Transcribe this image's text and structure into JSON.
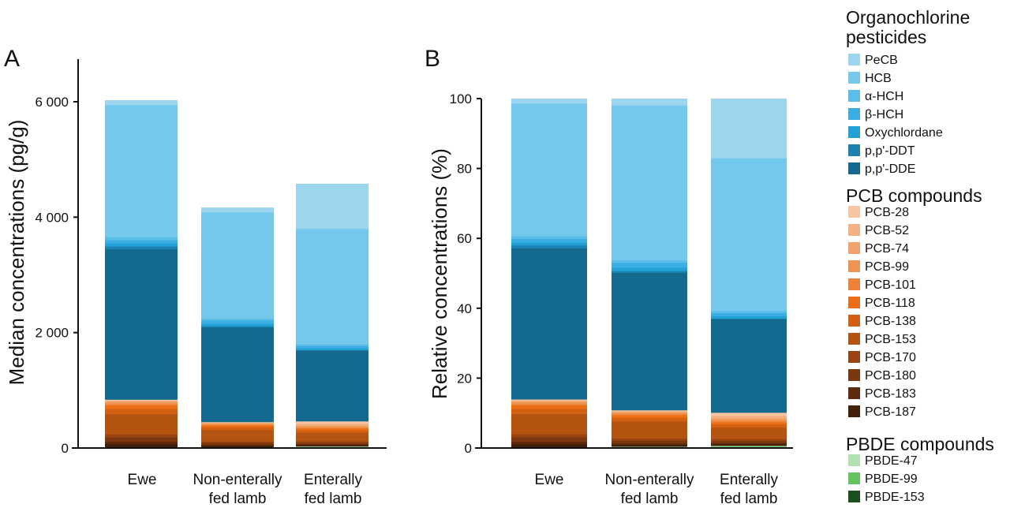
{
  "legend": {
    "groups": [
      {
        "title_line1": "Organochlorine",
        "title_line2": "pesticides"
      },
      {
        "title_line1": "PCB compounds",
        "title_line2": ""
      },
      {
        "title_line1": "PBDE compounds",
        "title_line2": ""
      }
    ]
  },
  "chart_data": [
    {
      "type": "bar",
      "stacked": true,
      "panel_label": "A",
      "ylabel": "Median concentrations (pg/g)",
      "xlabel": "",
      "ylim": [
        0,
        6700
      ],
      "yticks": [
        0,
        2000,
        4000,
        6000
      ],
      "ytick_labels": [
        "0",
        "2 000",
        "4 000",
        "6 000"
      ],
      "categories": [
        [
          "Ewe",
          ""
        ],
        [
          "Non-enterally",
          "fed lamb"
        ],
        [
          "Enterally",
          "fed lamb"
        ]
      ],
      "grid": false,
      "legend_position": "right",
      "series": [
        {
          "name": "PBDE-153",
          "group": 2,
          "color": "#1b4f1e",
          "values": [
            2,
            2,
            5
          ]
        },
        {
          "name": "PBDE-99",
          "group": 2,
          "color": "#62c562",
          "values": [
            5,
            10,
            15
          ]
        },
        {
          "name": "PBDE-47",
          "group": 2,
          "color": "#b0e3b0",
          "values": [
            3,
            5,
            10
          ]
        },
        {
          "name": "PCB-187",
          "group": 1,
          "color": "#42200a",
          "values": [
            60,
            25,
            20
          ]
        },
        {
          "name": "PCB-183",
          "group": 1,
          "color": "#5e290c",
          "values": [
            40,
            15,
            15
          ]
        },
        {
          "name": "PCB-180",
          "group": 1,
          "color": "#7d370f",
          "values": [
            80,
            35,
            30
          ]
        },
        {
          "name": "PCB-170",
          "group": 1,
          "color": "#9a4510",
          "values": [
            50,
            25,
            25
          ]
        },
        {
          "name": "PCB-153",
          "group": 1,
          "color": "#b55310",
          "values": [
            350,
            200,
            150
          ]
        },
        {
          "name": "PCB-138",
          "group": 1,
          "color": "#d35f10",
          "values": [
            90,
            45,
            40
          ]
        },
        {
          "name": "PCB-118",
          "group": 1,
          "color": "#eb6d14",
          "values": [
            60,
            30,
            30
          ]
        },
        {
          "name": "PCB-101",
          "group": 1,
          "color": "#ee8236",
          "values": [
            20,
            15,
            15
          ]
        },
        {
          "name": "PCB-99",
          "group": 1,
          "color": "#ef9350",
          "values": [
            30,
            15,
            20
          ]
        },
        {
          "name": "PCB-74",
          "group": 1,
          "color": "#f1a26a",
          "values": [
            20,
            10,
            20
          ]
        },
        {
          "name": "PCB-52",
          "group": 1,
          "color": "#f3b182",
          "values": [
            15,
            10,
            30
          ]
        },
        {
          "name": "PCB-28",
          "group": 1,
          "color": "#f6c4a0",
          "values": [
            15,
            10,
            40
          ]
        },
        {
          "name": "p,p'-DDE",
          "group": 0,
          "color": "#136a8e",
          "values": [
            2607,
            1640,
            1225
          ]
        },
        {
          "name": "p,p'-DDT",
          "group": 0,
          "color": "#1a82b3",
          "values": [
            50,
            20,
            10
          ]
        },
        {
          "name": "Oxychlordane",
          "group": 0,
          "color": "#22a0d8",
          "values": [
            50,
            40,
            30
          ]
        },
        {
          "name": "β-HCH",
          "group": 0,
          "color": "#3aaee3",
          "values": [
            60,
            60,
            40
          ]
        },
        {
          "name": "α-HCH",
          "group": 0,
          "color": "#5bbde9",
          "values": [
            50,
            30,
            30
          ]
        },
        {
          "name": "HCB",
          "group": 0,
          "color": "#74c8ec",
          "values": [
            2290,
            1845,
            2000
          ]
        },
        {
          "name": "PeCB",
          "group": 0,
          "color": "#9dd5ef",
          "values": [
            80,
            80,
            780
          ]
        }
      ]
    },
    {
      "type": "bar",
      "stacked": true,
      "stack_mode": "percent",
      "panel_label": "B",
      "ylabel": "Relative concentrations (%)",
      "xlabel": "",
      "ylim": [
        0,
        100
      ],
      "yticks": [
        0,
        20,
        40,
        60,
        80,
        100
      ],
      "ytick_labels": [
        "0",
        "20",
        "40",
        "60",
        "80",
        "100"
      ],
      "categories": [
        [
          "Ewe",
          ""
        ],
        [
          "Non-enterally",
          "fed lamb"
        ],
        [
          "Enterally",
          "fed lamb"
        ]
      ],
      "grid": false,
      "series_source": "same series as panel A, normalized to 100%"
    }
  ]
}
